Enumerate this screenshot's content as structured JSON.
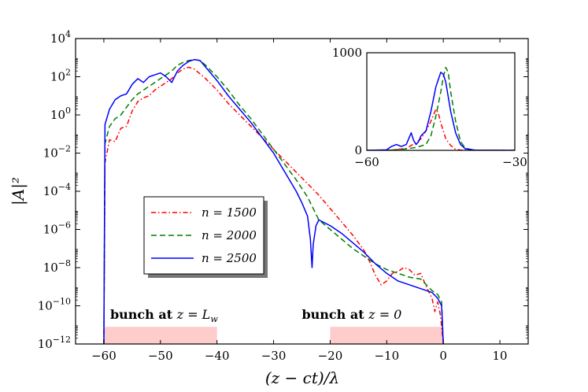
{
  "chart_data": {
    "type": "line",
    "title": "",
    "xlabel": "(z − ct)/λ",
    "ylabel": "|A|²",
    "xlim": [
      -65,
      15
    ],
    "ylim_log10": [
      -12,
      4
    ],
    "yscale": "log",
    "x_ticks": [
      -60,
      -50,
      -40,
      -30,
      -20,
      -10,
      0,
      10
    ],
    "x_tick_labels": [
      "−60",
      "−50",
      "−40",
      "−30",
      "−20",
      "−10",
      "0",
      "10"
    ],
    "y_ticks_log10": [
      -12,
      -10,
      -8,
      -6,
      -4,
      -2,
      0,
      2,
      4
    ],
    "y_tick_bases": [
      "10",
      "10",
      "10",
      "10",
      "10",
      "10",
      "10",
      "10",
      "10"
    ],
    "y_tick_exps": [
      "−12",
      "−10",
      "−8",
      "−6",
      "−4",
      "−2",
      "0",
      "2",
      "4"
    ],
    "legend_position": "center-left",
    "series": [
      {
        "name": "n = 1500",
        "color": "#ff0000",
        "style": "dashdot",
        "points": [
          [
            -60,
            -12
          ],
          [
            -59.8,
            -2.5
          ],
          [
            -59,
            -1.3
          ],
          [
            -58,
            -1.4
          ],
          [
            -57,
            -0.7
          ],
          [
            -56,
            -0.6
          ],
          [
            -55,
            0.2
          ],
          [
            -54,
            0.7
          ],
          [
            -53,
            0.9
          ],
          [
            -52,
            1.0
          ],
          [
            -51,
            1.3
          ],
          [
            -50,
            1.5
          ],
          [
            -49,
            1.7
          ],
          [
            -48,
            1.9
          ],
          [
            -47,
            2.2
          ],
          [
            -46,
            2.4
          ],
          [
            -45,
            2.5
          ],
          [
            -44,
            2.4
          ],
          [
            -42,
            1.9
          ],
          [
            -40,
            1.3
          ],
          [
            -38,
            0.6
          ],
          [
            -36,
            0.0
          ],
          [
            -34,
            -0.6
          ],
          [
            -32,
            -1.2
          ],
          [
            -30,
            -1.8
          ],
          [
            -28,
            -2.4
          ],
          [
            -26,
            -3.0
          ],
          [
            -24,
            -3.6
          ],
          [
            -22,
            -4.2
          ],
          [
            -20,
            -4.9
          ],
          [
            -18,
            -5.6
          ],
          [
            -16,
            -6.3
          ],
          [
            -14,
            -7.1
          ],
          [
            -13,
            -7.7
          ],
          [
            -12,
            -8.4
          ],
          [
            -11,
            -8.9
          ],
          [
            -10,
            -8.7
          ],
          [
            -9,
            -8.3
          ],
          [
            -8,
            -8.2
          ],
          [
            -7,
            -8.0
          ],
          [
            -6,
            -8.1
          ],
          [
            -5,
            -8.4
          ],
          [
            -4,
            -8.3
          ],
          [
            -3,
            -9.0
          ],
          [
            -2,
            -9.6
          ],
          [
            -1.5,
            -10.3
          ],
          [
            -1,
            -9.8
          ],
          [
            -0.5,
            -10.5
          ],
          [
            0,
            -12
          ]
        ]
      },
      {
        "name": "n = 2000",
        "color": "#007f00",
        "style": "dashed",
        "points": [
          [
            -60,
            -12
          ],
          [
            -59.8,
            -1.5
          ],
          [
            -59,
            -0.6
          ],
          [
            -58,
            -0.2
          ],
          [
            -57,
            0.0
          ],
          [
            -56,
            0.4
          ],
          [
            -55,
            0.8
          ],
          [
            -54,
            1.1
          ],
          [
            -53,
            1.3
          ],
          [
            -52,
            1.5
          ],
          [
            -51,
            1.7
          ],
          [
            -50,
            1.9
          ],
          [
            -49,
            2.1
          ],
          [
            -48,
            2.3
          ],
          [
            -47,
            2.6
          ],
          [
            -46,
            2.75
          ],
          [
            -45,
            2.85
          ],
          [
            -44,
            2.9
          ],
          [
            -43,
            2.85
          ],
          [
            -42,
            2.6
          ],
          [
            -40,
            2.0
          ],
          [
            -38,
            1.3
          ],
          [
            -36,
            0.5
          ],
          [
            -34,
            -0.2
          ],
          [
            -32,
            -1.0
          ],
          [
            -30,
            -1.8
          ],
          [
            -28,
            -2.6
          ],
          [
            -26,
            -3.4
          ],
          [
            -24,
            -4.3
          ],
          [
            -23,
            -4.9
          ],
          [
            -22,
            -5.5
          ],
          [
            -20,
            -6.0
          ],
          [
            -18,
            -6.5
          ],
          [
            -16,
            -7.0
          ],
          [
            -14,
            -7.4
          ],
          [
            -12,
            -7.8
          ],
          [
            -10,
            -8.1
          ],
          [
            -8,
            -8.3
          ],
          [
            -6,
            -8.5
          ],
          [
            -4,
            -8.6
          ],
          [
            -3,
            -8.9
          ],
          [
            -2,
            -9.2
          ],
          [
            -1,
            -9.4
          ],
          [
            -0.3,
            -9.8
          ],
          [
            0,
            -12
          ]
        ]
      },
      {
        "name": "n = 2500",
        "color": "#0000ff",
        "style": "solid",
        "points": [
          [
            -60,
            -12
          ],
          [
            -59.8,
            -0.5
          ],
          [
            -59,
            0.3
          ],
          [
            -58,
            0.8
          ],
          [
            -57,
            1.0
          ],
          [
            -56,
            1.1
          ],
          [
            -55,
            1.6
          ],
          [
            -54,
            1.9
          ],
          [
            -53,
            1.7
          ],
          [
            -52,
            2.0
          ],
          [
            -51,
            2.1
          ],
          [
            -50,
            2.2
          ],
          [
            -49,
            2.0
          ],
          [
            -48,
            1.7
          ],
          [
            -47,
            2.3
          ],
          [
            -46,
            2.6
          ],
          [
            -45,
            2.8
          ],
          [
            -44,
            2.9
          ],
          [
            -43,
            2.85
          ],
          [
            -42,
            2.5
          ],
          [
            -40,
            1.8
          ],
          [
            -38,
            1.0
          ],
          [
            -36,
            0.3
          ],
          [
            -34,
            -0.4
          ],
          [
            -32,
            -1.2
          ],
          [
            -30,
            -2.0
          ],
          [
            -28,
            -3.0
          ],
          [
            -27,
            -3.5
          ],
          [
            -26,
            -4.0
          ],
          [
            -25,
            -4.6
          ],
          [
            -24,
            -5.3
          ],
          [
            -23.5,
            -6.5
          ],
          [
            -23.2,
            -8.0
          ],
          [
            -23,
            -6.8
          ],
          [
            -22.5,
            -5.8
          ],
          [
            -22,
            -5.5
          ],
          [
            -20,
            -5.8
          ],
          [
            -18,
            -6.2
          ],
          [
            -16,
            -6.7
          ],
          [
            -14,
            -7.2
          ],
          [
            -12,
            -7.8
          ],
          [
            -10,
            -8.3
          ],
          [
            -8,
            -8.7
          ],
          [
            -6,
            -8.9
          ],
          [
            -4,
            -9.1
          ],
          [
            -2,
            -9.3
          ],
          [
            -1,
            -9.6
          ],
          [
            -0.3,
            -10.0
          ],
          [
            0,
            -12
          ]
        ]
      }
    ],
    "annotations": [
      {
        "text": "bunch at z = Lw",
        "label_prefix": "bunch at ",
        "label_math": "z = L",
        "label_sub": "w",
        "band": [
          -60,
          -40
        ]
      },
      {
        "text": "bunch at z = 0",
        "label_prefix": "bunch at ",
        "label_math": "z = 0",
        "label_sub": "",
        "band": [
          -20,
          0
        ]
      }
    ],
    "band_color": "#ffcccc",
    "inset": {
      "type": "line",
      "xlim": [
        -60,
        -30
      ],
      "ylim": [
        0,
        1000
      ],
      "x_tick_labels": [
        "−60",
        "−30"
      ],
      "y_tick_labels": [
        "0",
        "1000"
      ],
      "series": [
        {
          "name": "n = 1500",
          "points": [
            [
              -60,
              0
            ],
            [
              -55,
              2
            ],
            [
              -52,
              20
            ],
            [
              -50,
              80
            ],
            [
              -49,
              120
            ],
            [
              -48,
              200
            ],
            [
              -47,
              300
            ],
            [
              -46,
              420
            ],
            [
              -45.5,
              380
            ],
            [
              -45,
              280
            ],
            [
              -44,
              120
            ],
            [
              -43,
              50
            ],
            [
              -42,
              10
            ],
            [
              -41,
              3
            ],
            [
              -40,
              0
            ],
            [
              -30,
              0
            ]
          ]
        },
        {
          "name": "n = 2000",
          "points": [
            [
              -60,
              0
            ],
            [
              -55,
              3
            ],
            [
              -52,
              15
            ],
            [
              -50,
              30
            ],
            [
              -48,
              60
            ],
            [
              -47,
              150
            ],
            [
              -46,
              350
            ],
            [
              -45,
              600
            ],
            [
              -44.5,
              750
            ],
            [
              -44,
              850
            ],
            [
              -43.5,
              800
            ],
            [
              -43,
              600
            ],
            [
              -42,
              300
            ],
            [
              -41,
              90
            ],
            [
              -40,
              20
            ],
            [
              -38,
              2
            ],
            [
              -30,
              0
            ]
          ]
        },
        {
          "name": "n = 2500",
          "points": [
            [
              -60,
              0
            ],
            [
              -56,
              5
            ],
            [
              -55,
              40
            ],
            [
              -54,
              60
            ],
            [
              -53,
              40
            ],
            [
              -52,
              60
            ],
            [
              -51,
              180
            ],
            [
              -50.5,
              100
            ],
            [
              -50,
              60
            ],
            [
              -49.5,
              90
            ],
            [
              -49,
              150
            ],
            [
              -48,
              200
            ],
            [
              -47,
              400
            ],
            [
              -46,
              650
            ],
            [
              -45,
              800
            ],
            [
              -44.5,
              780
            ],
            [
              -44,
              700
            ],
            [
              -43,
              400
            ],
            [
              -42,
              180
            ],
            [
              -41,
              60
            ],
            [
              -40,
              15
            ],
            [
              -38,
              2
            ],
            [
              -30,
              0
            ]
          ]
        }
      ]
    }
  }
}
